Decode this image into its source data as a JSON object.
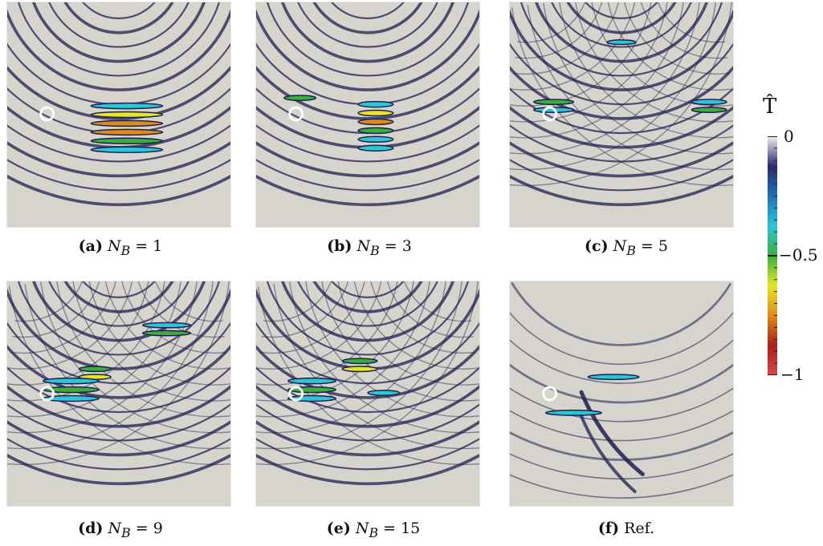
{
  "panels": [
    {
      "id": "a",
      "label": "(a)",
      "text": "N_B = 1",
      "var": "N",
      "sub": "B",
      "val": "1",
      "type": "single",
      "spread": 0.8
    },
    {
      "id": "b",
      "label": "(b)",
      "text": "N_B = 3",
      "var": "N",
      "sub": "B",
      "val": "3",
      "type": "single",
      "spread": 1.4
    },
    {
      "id": "c",
      "label": "(c)",
      "text": "N_B = 5",
      "var": "N",
      "sub": "B",
      "val": "5",
      "type": "multi",
      "spread": 2.0
    },
    {
      "id": "d",
      "label": "(d)",
      "text": "N_B = 9",
      "var": "N",
      "sub": "B",
      "val": "9",
      "type": "multi",
      "spread": 2.6
    },
    {
      "id": "e",
      "label": "(e)",
      "text": "N_B = 15",
      "var": "N",
      "sub": "B",
      "val": "15",
      "type": "multi",
      "spread": 2.2
    },
    {
      "id": "f",
      "label": "(f)",
      "text": "Ref.",
      "var": "",
      "sub": "",
      "val": "",
      "type": "ref",
      "spread": 0
    }
  ],
  "colorbar": {
    "title": "T̂",
    "ticks": [
      {
        "label": "0",
        "value": 0
      },
      {
        "label": "−0.5",
        "value": -0.5
      },
      {
        "label": "−1",
        "value": -1
      }
    ],
    "colors": [
      "#f2f2f7",
      "#2a2a6a",
      "#1f6fb5",
      "#2ec6d6",
      "#3cae3c",
      "#e5e52a",
      "#e08a1c",
      "#a8211c",
      "#d7474a"
    ]
  },
  "colors": {
    "background": "#d6d4cd",
    "wave": "#1d1f4e",
    "marker": "#ffffff"
  }
}
